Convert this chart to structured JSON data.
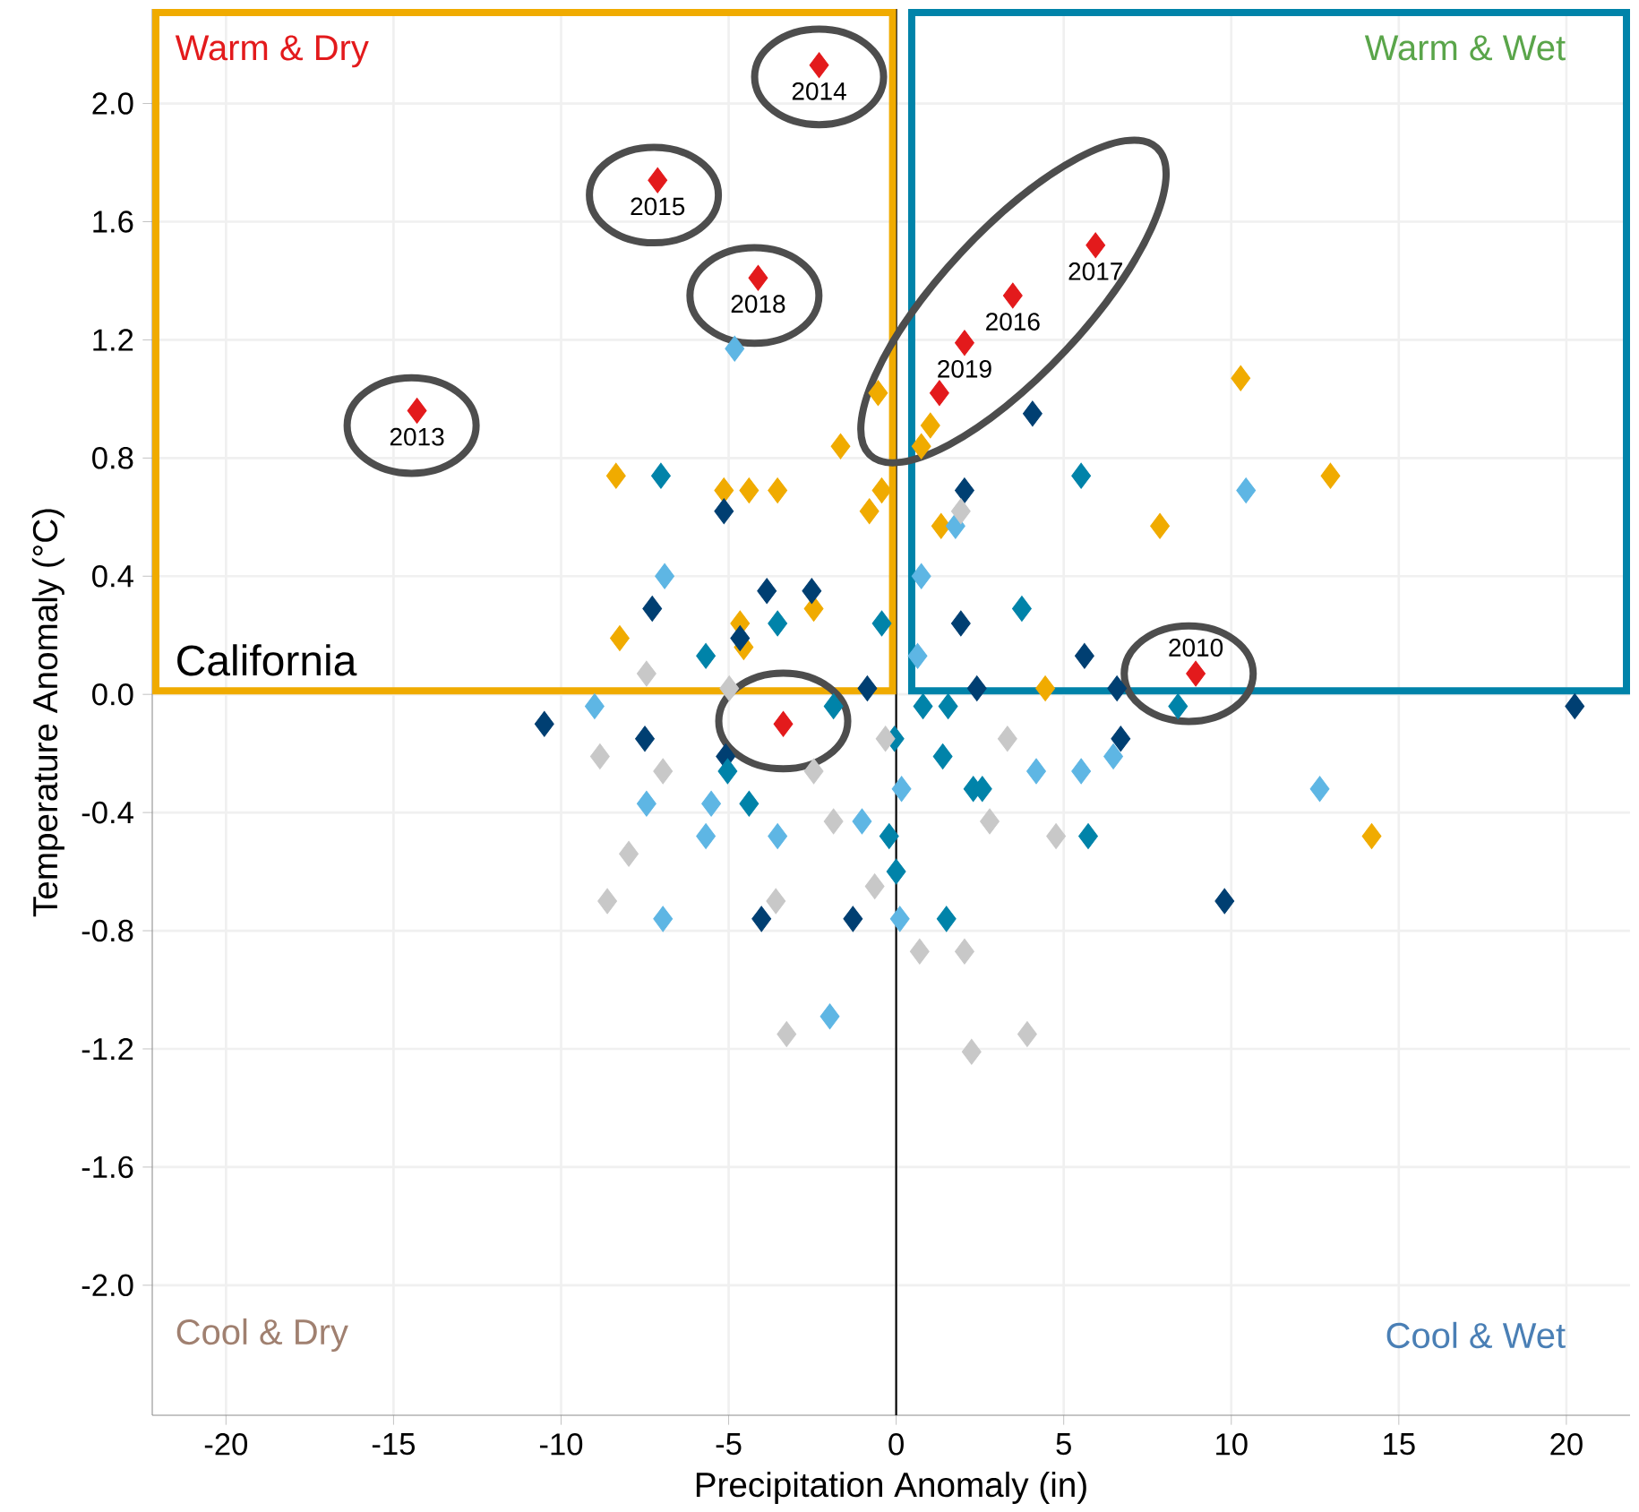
{
  "chart_data": {
    "type": "scatter",
    "xlabel": "Precipitation Anomaly (in)",
    "ylabel": "Temperature Anomaly (°C)",
    "xlim": [
      -22.2,
      21.9
    ],
    "ylim": [
      -2.44,
      2.32
    ],
    "xticks": [
      -20,
      -15,
      -10,
      -5,
      0,
      5,
      10,
      15,
      20
    ],
    "yticks": [
      {
        "value": 2.0,
        "label": "2.0"
      },
      1.6,
      1.2,
      0.8,
      0.4,
      {
        "value": 0.0,
        "label": "0.0"
      },
      -0.4,
      -0.8,
      -1.2,
      -1.6,
      {
        "value": -2.0,
        "label": "-2.0"
      }
    ],
    "grid": true,
    "marker": "diamond",
    "ref_lines": [
      {
        "axis": "x",
        "value": 0,
        "color": "#000000"
      }
    ],
    "annotations": [
      "Warm & Dry",
      "Warm & Wet",
      "Cool & Dry",
      "Cool & Wet",
      "California",
      {
        "text": "2014",
        "x": -2.3,
        "y": 2.13
      },
      {
        "text": "2015",
        "x": -7.12,
        "y": 1.74
      },
      {
        "text": "2018",
        "x": -4.12,
        "y": 1.41
      },
      {
        "text": "2013",
        "x": -14.3,
        "y": 0.96
      },
      {
        "text": "2017",
        "x": 5.95,
        "y": 1.52
      },
      {
        "text": "2016",
        "x": 3.48,
        "y": 1.35
      },
      {
        "text": "2019",
        "x": 2.04,
        "y": 1.19
      },
      {
        "text": "2010",
        "x": 8.94,
        "y": 0.07
      }
    ],
    "series": [
      {
        "color": "#f0ab00",
        "x": [
          -0.54,
          -1.66,
          -8.36,
          -5.14,
          -4.39,
          -3.54,
          -0.43,
          -0.8,
          -4.66,
          -2.46,
          -8.25,
          -4.55,
          1.02,
          0.75,
          10.28,
          12.96,
          1.34,
          7.87,
          4.45,
          14.19
        ],
        "values": [
          1.02,
          0.84,
          0.74,
          0.69,
          0.69,
          0.69,
          0.69,
          0.62,
          0.24,
          0.29,
          0.19,
          0.16,
          0.91,
          0.84,
          1.07,
          0.74,
          0.57,
          0.57,
          0.02,
          -0.48
        ]
      },
      {
        "color": "#003f72",
        "x": [
          -5.14,
          -3.86,
          -2.52,
          -7.28,
          -4.66,
          -0.86,
          4.07,
          2.04,
          1.93,
          5.62,
          2.41,
          6.59,
          20.25,
          -10.5,
          -7.5,
          -5.09,
          -4.02,
          -1.29,
          6.7,
          9.8
        ],
        "values": [
          0.62,
          0.35,
          0.35,
          0.29,
          0.19,
          0.02,
          0.95,
          0.69,
          0.24,
          0.13,
          0.02,
          0.02,
          -0.04,
          -0.1,
          -0.15,
          -0.21,
          -0.76,
          -0.76,
          -0.15,
          -0.7
        ]
      },
      {
        "color": "#0083a9",
        "x": [
          -7.02,
          -3.54,
          -0.43,
          -5.68,
          5.52,
          3.75,
          8.41,
          -1.87,
          -5.03,
          -4.39,
          -0.21,
          0.0,
          -0.05,
          0.8,
          1.55,
          1.39,
          2.3,
          2.57,
          5.73,
          1.5
        ],
        "values": [
          0.74,
          0.24,
          0.24,
          0.13,
          0.74,
          0.29,
          -0.04,
          -0.04,
          -0.26,
          -0.37,
          -0.48,
          -0.6,
          -0.15,
          -0.04,
          -0.04,
          -0.21,
          -0.32,
          -0.32,
          -0.48,
          -0.76
        ]
      },
      {
        "color": "#5eb6e4",
        "x": [
          -4.82,
          -6.91,
          -9.0,
          1.77,
          0.75,
          0.64,
          10.44,
          -7.45,
          -5.52,
          -5.68,
          -3.54,
          -1.02,
          -6.96,
          -1.98,
          0.16,
          0.11,
          4.18,
          5.52,
          6.48,
          12.64
        ],
        "values": [
          1.17,
          0.4,
          -0.04,
          0.57,
          0.4,
          0.13,
          0.69,
          -0.37,
          -0.37,
          -0.48,
          -0.48,
          -0.43,
          -0.76,
          -1.09,
          -0.32,
          -0.76,
          -0.26,
          -0.26,
          -0.21,
          -0.32
        ]
      },
      {
        "color": "#c8c8c8",
        "x": [
          -7.45,
          -4.98,
          1.93,
          -8.84,
          -6.96,
          -2.46,
          -1.87,
          -7.98,
          -8.62,
          -3.59,
          -0.64,
          -0.32,
          -3.27,
          3.32,
          2.79,
          4.77,
          0.7,
          2.04,
          3.91,
          2.25
        ],
        "values": [
          0.07,
          0.02,
          0.62,
          -0.21,
          -0.26,
          -0.26,
          -0.43,
          -0.54,
          -0.7,
          -0.7,
          -0.65,
          -0.15,
          -1.15,
          -0.15,
          -0.43,
          -0.48,
          -0.87,
          -0.87,
          -1.15,
          -1.21
        ]
      },
      {
        "color": "#e31a1c",
        "x": [
          -2.3,
          -7.12,
          -4.12,
          -14.3,
          5.95,
          3.48,
          2.04,
          1.29,
          -3.37,
          8.94
        ],
        "values": [
          2.13,
          1.74,
          1.41,
          0.96,
          1.52,
          1.35,
          1.19,
          1.02,
          -0.1,
          0.07
        ]
      }
    ]
  }
}
